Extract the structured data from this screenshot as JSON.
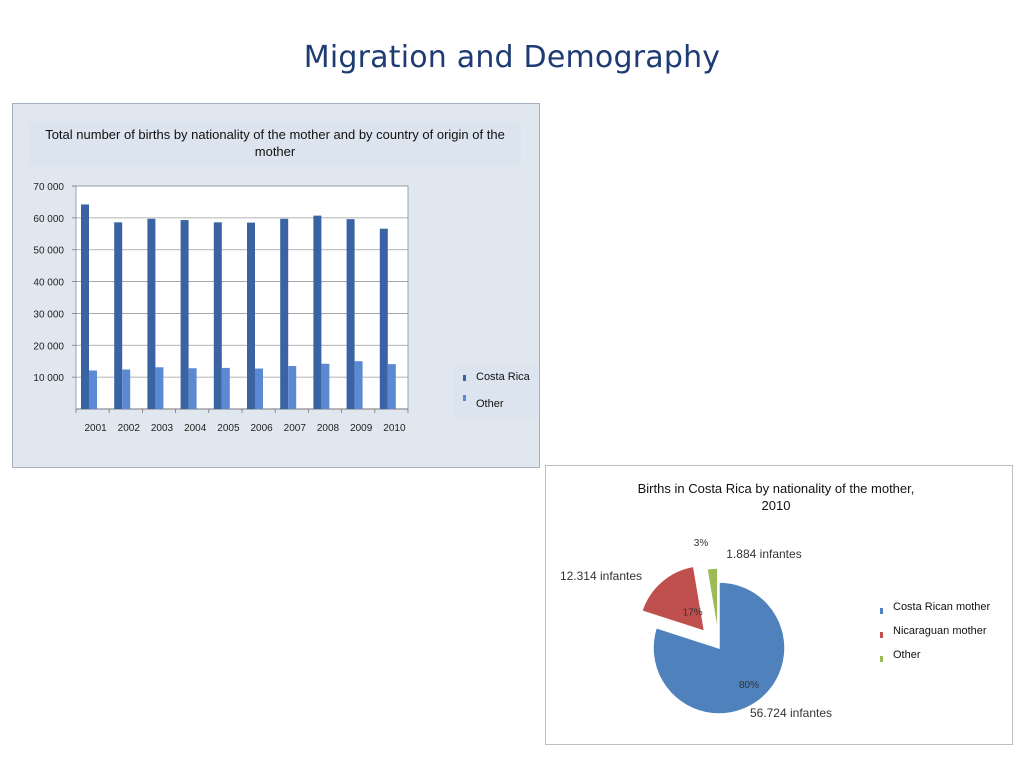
{
  "slide": {
    "title": "Migration and Demography"
  },
  "colors": {
    "title": "#1f3b73",
    "costa_rica": "#3a63a3",
    "other_bar": "#5b8ad2",
    "pie_costa_rican": "#4f81bd",
    "pie_nicaraguan": "#c0504d",
    "pie_other": "#9bbb59"
  },
  "chart_data": [
    {
      "type": "bar",
      "title": "Total number of births by nationality of the mother and by country of origin of the mother",
      "categories": [
        "2001",
        "2002",
        "2003",
        "2004",
        "2005",
        "2006",
        "2007",
        "2008",
        "2009",
        "2010"
      ],
      "series": [
        {
          "name": "Costa Rica",
          "values": [
            64200,
            58600,
            59700,
            59300,
            58600,
            58500,
            59700,
            60700,
            59600,
            56600
          ]
        },
        {
          "name": "Other",
          "values": [
            12100,
            12400,
            13100,
            12800,
            12900,
            12700,
            13500,
            14200,
            15000,
            14100
          ]
        }
      ],
      "ylim": [
        0,
        70000
      ],
      "yticks": [
        "70 000",
        "60 000",
        "50 000",
        "40 000",
        "30 000",
        "20 000",
        "10 000"
      ],
      "ytick_values": [
        70000,
        60000,
        50000,
        40000,
        30000,
        20000,
        10000
      ],
      "grid": true,
      "legend_position": "right"
    },
    {
      "type": "pie",
      "title_line1": "Births in Costa Rica by nationality of the mother,",
      "title_line2": "2010",
      "slices": [
        {
          "name": "Costa Rican mother",
          "value": 56724,
          "percent_label": "80%",
          "count_label": "56.724 infantes"
        },
        {
          "name": "Nicaraguan mother",
          "value": 12314,
          "percent_label": "17%",
          "count_label": "12.314 infantes"
        },
        {
          "name": "Other",
          "value": 1884,
          "percent_label": "3%",
          "count_label": "1.884 infantes"
        }
      ],
      "legend_position": "right"
    }
  ]
}
